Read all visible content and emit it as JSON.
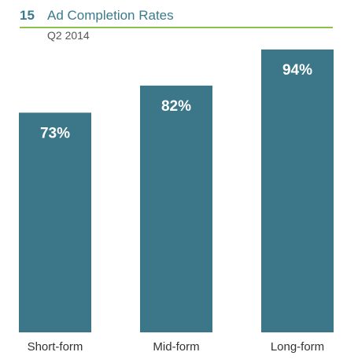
{
  "header": {
    "number": "15",
    "title": "Ad Completion Rates",
    "subtitle": "Q2 2014"
  },
  "colors": {
    "bar": "#3b7788",
    "label": "#ffffff",
    "category": "#333333",
    "rule": "#8cc152"
  },
  "chart_data": {
    "type": "bar",
    "title": "Ad Completion Rates",
    "subtitle": "Q2 2014",
    "categories": [
      "Short-form",
      "Mid-form",
      "Long-form"
    ],
    "values": [
      73,
      82,
      94
    ],
    "data_labels": [
      "73%",
      "82%",
      "94%"
    ],
    "ylim": [
      0,
      100
    ],
    "grid": false,
    "legend": "none",
    "xlabel": "",
    "ylabel": ""
  }
}
